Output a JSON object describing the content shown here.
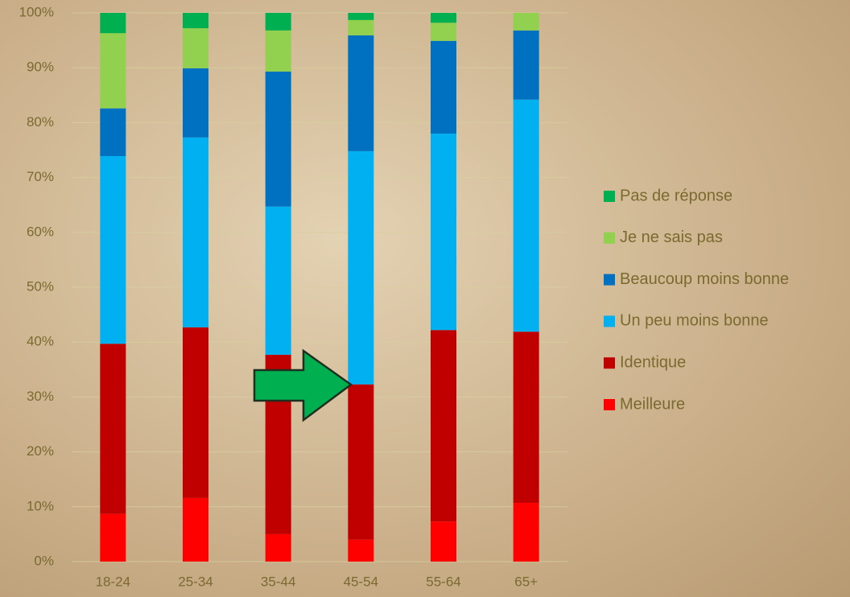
{
  "chart_data": {
    "type": "stacked-bar",
    "categories": [
      "18-24",
      "25-34",
      "35-44",
      "45-54",
      "55-64",
      "65+"
    ],
    "series": [
      {
        "name": "Meilleure",
        "color": "#ff0000",
        "values": [
          8.7,
          11.6,
          5.0,
          4.0,
          7.3,
          10.7
        ]
      },
      {
        "name": "Identique",
        "color": "#c00000",
        "values": [
          31.0,
          31.1,
          32.7,
          28.3,
          34.9,
          31.2
        ]
      },
      {
        "name": "Un peu moins bonne",
        "color": "#00b0f0",
        "values": [
          34.2,
          34.6,
          27.0,
          42.5,
          35.8,
          42.3
        ]
      },
      {
        "name": "Beaucoup moins bonne",
        "color": "#0070c0",
        "values": [
          8.7,
          12.6,
          24.6,
          21.1,
          16.9,
          12.6
        ]
      },
      {
        "name": "Je ne sais pas",
        "color": "#92d050",
        "values": [
          13.7,
          7.3,
          7.5,
          2.8,
          3.3,
          3.2
        ]
      },
      {
        "name": "Pas de réponse",
        "color": "#00b050",
        "values": [
          3.7,
          2.8,
          3.2,
          1.3,
          1.8,
          0
        ]
      }
    ],
    "ylim": [
      0,
      100
    ],
    "yticks": [
      {
        "value": 0,
        "label": "0%"
      },
      {
        "value": 10,
        "label": "10%"
      },
      {
        "value": 20,
        "label": "20%"
      },
      {
        "value": 30,
        "label": "30%"
      },
      {
        "value": 40,
        "label": "40%"
      },
      {
        "value": 50,
        "label": "50%"
      },
      {
        "value": 60,
        "label": "60%"
      },
      {
        "value": 70,
        "label": "70%"
      },
      {
        "value": 80,
        "label": "80%"
      },
      {
        "value": 90,
        "label": "90%"
      },
      {
        "value": 100,
        "label": "100%"
      }
    ],
    "grid": true,
    "legend": "right"
  }
}
